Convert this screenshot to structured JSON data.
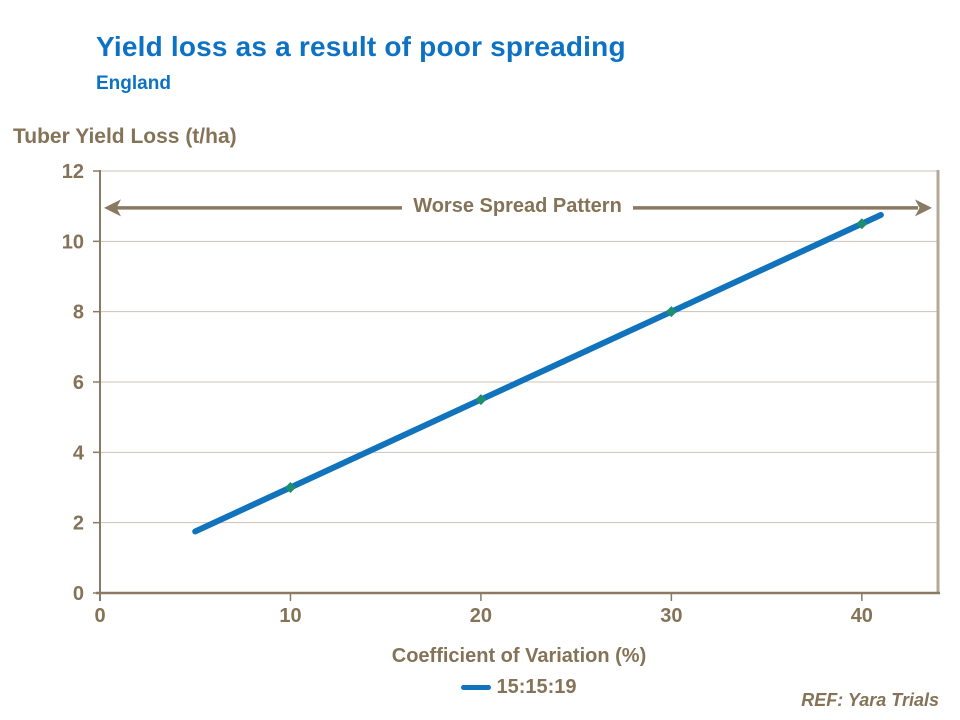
{
  "slide": {
    "title": "Yield loss as a result of poor spreading",
    "subtitle": "England",
    "ref": "REF: Yara Trials"
  },
  "colors": {
    "accent_blue": "#0d72c4",
    "line_blue": "#1173bc",
    "brown_text": "#857357",
    "brown_line": "#8a7a63",
    "right_border": "#b3a999",
    "gridline": "#cbc3b7",
    "marker_teal": "#1f8e6e",
    "background": "#ffffff"
  },
  "chart_data": {
    "type": "line",
    "y_axis_title": "Tuber Yield Loss (t/ha)",
    "x_axis_title": "Coefficient of Variation (%)",
    "xlim": [
      0,
      44
    ],
    "ylim": [
      0,
      12
    ],
    "x_ticks": [
      0,
      10,
      20,
      30,
      40
    ],
    "y_ticks": [
      0,
      2,
      4,
      6,
      8,
      10,
      12
    ],
    "grid": "horizontal",
    "annotation": {
      "label": "Worse Spread Pattern",
      "y": 10.95,
      "arrow": "double-headed-horizontal-full-width"
    },
    "legend": {
      "position": "bottom-center",
      "entries": [
        {
          "label": "15:15:19",
          "color": "#1173bc"
        }
      ]
    },
    "series": [
      {
        "name": "15:15:19",
        "color": "#1173bc",
        "marker_color": "#1f8e6e",
        "points_x": [
          5,
          10,
          20,
          30,
          40,
          41
        ],
        "points_y": [
          1.75,
          3,
          5.5,
          8,
          10.5,
          10.75
        ],
        "marker_points_x": [
          10,
          20,
          30,
          40
        ],
        "marker_points_y": [
          3,
          5.5,
          8,
          10.5
        ],
        "relation": "yield_loss = 0.25 * CV + 0.5"
      }
    ]
  }
}
